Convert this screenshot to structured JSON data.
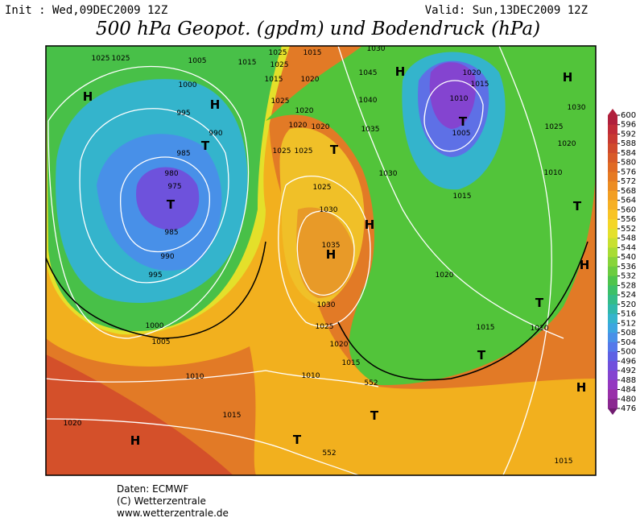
{
  "header": {
    "init": "Init : Wed,09DEC2009 12Z",
    "valid": "Valid: Sun,13DEC2009 12Z",
    "title": "500 hPa Geopot. (gpdm) und Bodendruck (hPa)"
  },
  "map": {
    "labels": [
      "1025",
      "1025",
      "1005",
      "1015",
      "1025",
      "1025",
      "1015",
      "1030",
      "1045",
      "1020",
      "1015",
      "1025",
      "1020",
      "1040",
      "1000",
      "995",
      "990",
      "985",
      "980",
      "975",
      "985",
      "990",
      "995",
      "1000",
      "1005",
      "1010",
      "1015",
      "1020",
      "1020",
      "1020",
      "1025",
      "1025",
      "1025",
      "1030",
      "1035",
      "1030",
      "1025",
      "1020",
      "1015",
      "1010",
      "1035",
      "1030",
      "1020",
      "1015",
      "1010",
      "1005",
      "1030",
      "1025",
      "1020",
      "1010",
      "1015",
      "1020",
      "1015",
      "1010",
      "1015",
      "552",
      "552",
      "H",
      "H",
      "T",
      "T",
      "H",
      "T",
      "T",
      "H",
      "H",
      "T",
      "H",
      "T",
      "T",
      "T",
      "T",
      "H",
      "H",
      "H"
    ]
  },
  "colorbar": {
    "ticks": [
      600,
      596,
      592,
      588,
      584,
      580,
      576,
      572,
      568,
      564,
      560,
      556,
      552,
      548,
      544,
      540,
      536,
      532,
      528,
      524,
      520,
      516,
      512,
      508,
      504,
      500,
      496,
      492,
      488,
      484,
      480,
      476
    ],
    "colors": [
      "#b0203c",
      "#c02c38",
      "#c83a32",
      "#d04a2c",
      "#d85a28",
      "#e06a24",
      "#e67a22",
      "#ec8c22",
      "#f29e22",
      "#f6b024",
      "#f8c426",
      "#f4d628",
      "#e4e02c",
      "#c8e030",
      "#a8dc34",
      "#88d43a",
      "#6ccc40",
      "#4ec44c",
      "#3cc068",
      "#34bc88",
      "#30b8aa",
      "#34b4cc",
      "#3ca6e0",
      "#4890e8",
      "#5478ea",
      "#5e60e4",
      "#7050dc",
      "#8444d0",
      "#9438c0",
      "#9830a8",
      "#8a2890",
      "#701c70"
    ]
  },
  "footer": {
    "lines": [
      "Daten: ECMWF",
      "(C) Wetterzentrale",
      "www.wetterzentrale.de"
    ]
  }
}
